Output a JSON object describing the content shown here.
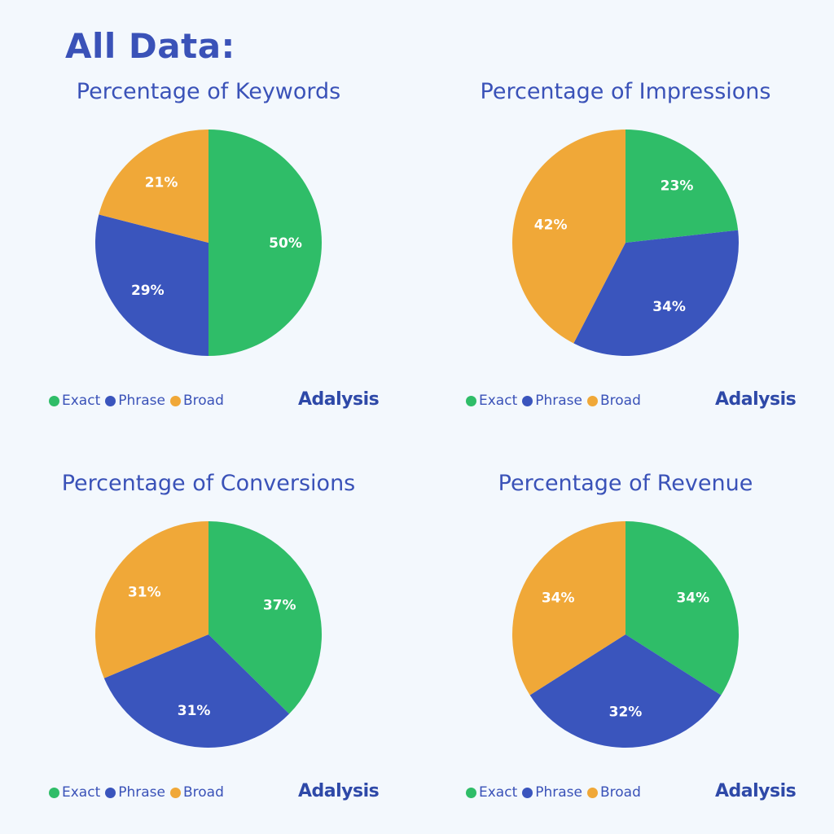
{
  "title": "All Data:",
  "colors": {
    "Exact": "#2fbd68",
    "Phrase": "#3a55bd",
    "Broad": "#f0a838"
  },
  "legend": [
    "Exact",
    "Phrase",
    "Broad"
  ],
  "logo": "Adalysis",
  "chart_data": [
    {
      "type": "pie",
      "title": "Percentage of Keywords",
      "categories": [
        "Exact",
        "Phrase",
        "Broad"
      ],
      "values": [
        50,
        29,
        21
      ],
      "labels": [
        "50%",
        "29%",
        "21%"
      ]
    },
    {
      "type": "pie",
      "title": "Percentage of Impressions",
      "categories": [
        "Exact",
        "Phrase",
        "Broad"
      ],
      "values": [
        23,
        34,
        42
      ],
      "labels": [
        "23%",
        "34%",
        "42%"
      ]
    },
    {
      "type": "pie",
      "title": "Percentage of Conversions",
      "categories": [
        "Exact",
        "Phrase",
        "Broad"
      ],
      "values": [
        37,
        31,
        31
      ],
      "labels": [
        "37%",
        "31%",
        "31%"
      ]
    },
    {
      "type": "pie",
      "title": "Percentage of Revenue",
      "categories": [
        "Exact",
        "Phrase",
        "Broad"
      ],
      "values": [
        34,
        32,
        34
      ],
      "labels": [
        "34%",
        "32%",
        "34%"
      ]
    }
  ]
}
